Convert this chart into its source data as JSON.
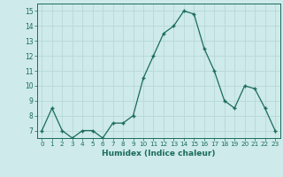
{
  "x": [
    0,
    1,
    2,
    3,
    4,
    5,
    6,
    7,
    8,
    9,
    10,
    11,
    12,
    13,
    14,
    15,
    16,
    17,
    18,
    19,
    20,
    21,
    22,
    23
  ],
  "y": [
    7,
    8.5,
    7,
    6.5,
    7,
    7,
    6.5,
    7.5,
    7.5,
    8,
    10.5,
    12,
    13.5,
    14,
    15,
    14.8,
    12.5,
    11,
    9,
    8.5,
    10,
    9.8,
    8.5,
    7
  ],
  "line_color": "#1a6b5a",
  "marker_color": "#1a6b5a",
  "background_color": "#ceeaea",
  "grid_color": "#b8d8d8",
  "axis_label_color": "#1a6b5a",
  "tick_label_color": "#1a6b5a",
  "xlabel": "Humidex (Indice chaleur)",
  "xlim": [
    -0.5,
    23.5
  ],
  "ylim": [
    6.5,
    15.5
  ],
  "yticks": [
    7,
    8,
    9,
    10,
    11,
    12,
    13,
    14,
    15
  ],
  "xtick_labels": [
    "0",
    "1",
    "2",
    "3",
    "4",
    "5",
    "6",
    "7",
    "8",
    "9",
    "10",
    "11",
    "12",
    "13",
    "14",
    "15",
    "16",
    "17",
    "18",
    "19",
    "20",
    "21",
    "22",
    "23"
  ]
}
